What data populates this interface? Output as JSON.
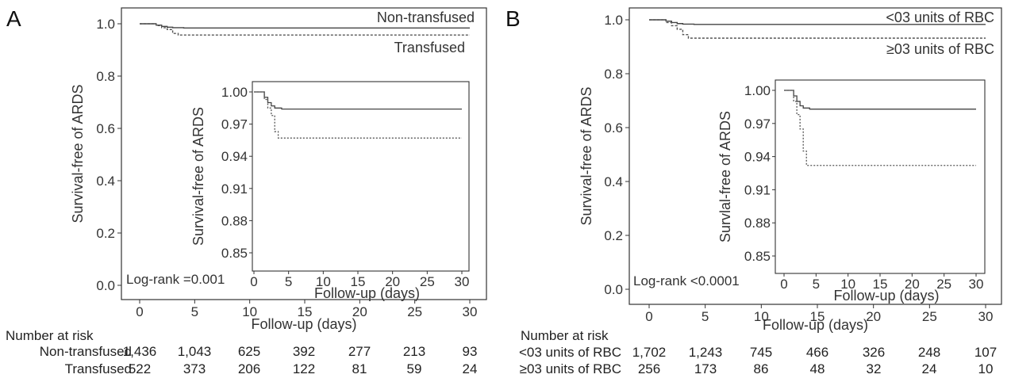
{
  "chart_data": [
    {
      "type": "line",
      "panel": "A",
      "xlabel": "Follow-up (days)",
      "ylabel": "Survival-free of ARDS",
      "xlim": [
        0,
        30
      ],
      "ylim": [
        0,
        1.0
      ],
      "xticks": [
        0,
        5,
        10,
        15,
        20,
        25,
        30
      ],
      "yticks": [
        "0.0",
        "0.2",
        "0.4",
        "0.6",
        "0.8",
        "1.0"
      ],
      "annotation": "Log-rank =0.001",
      "series": [
        {
          "name": "Non-transfused",
          "style": "solid",
          "x": [
            0,
            1,
            1.5,
            2,
            2.5,
            3,
            4,
            30
          ],
          "y": [
            1.0,
            1.0,
            0.995,
            0.99,
            0.987,
            0.985,
            0.984,
            0.984
          ]
        },
        {
          "name": "Transfused",
          "style": "dotted",
          "x": [
            0,
            1,
            1.5,
            2,
            2.5,
            3,
            3.5,
            30
          ],
          "y": [
            1.0,
            1.0,
            0.993,
            0.985,
            0.978,
            0.963,
            0.957,
            0.957
          ]
        }
      ],
      "inset": {
        "xlabel": "Follow-up (days)",
        "ylabel": "Survival-free of ARDS",
        "xlim": [
          0,
          30
        ],
        "ylim": [
          0.84,
          1.0
        ],
        "xticks": [
          0,
          5,
          10,
          15,
          20,
          25,
          30
        ],
        "yticks": [
          "1.00",
          "0.97",
          "0.94",
          "0.91",
          "0.88",
          "0.85"
        ]
      },
      "risk_table": {
        "title": "Number at risk",
        "rows": [
          {
            "label": "Non-transfused",
            "values": [
              "1,436",
              "1,043",
              "625",
              "392",
              "277",
              "213",
              "93"
            ]
          },
          {
            "label": "Transfused",
            "values": [
              "522",
              "373",
              "206",
              "122",
              "81",
              "59",
              "24"
            ]
          }
        ]
      }
    },
    {
      "type": "line",
      "panel": "B",
      "xlabel": "Follow-up (days)",
      "ylabel": "Survival-free of ARDS",
      "xlim": [
        0,
        30
      ],
      "ylim": [
        0,
        1.0
      ],
      "xticks": [
        0,
        5,
        10,
        15,
        20,
        25,
        30
      ],
      "yticks": [
        "0.0",
        "0.2",
        "0.4",
        "0.6",
        "0.8",
        "1.0"
      ],
      "annotation": "Log-rank <0.0001",
      "series": [
        {
          "name": "<03 units of RBC",
          "style": "solid",
          "x": [
            0,
            1,
            1.5,
            2,
            2.5,
            3,
            4,
            30
          ],
          "y": [
            1.0,
            1.0,
            0.995,
            0.99,
            0.986,
            0.984,
            0.983,
            0.983
          ]
        },
        {
          "name": "≥03 units of RBC",
          "style": "dotted",
          "x": [
            0,
            1,
            1.5,
            2,
            2.5,
            3,
            3.5,
            30
          ],
          "y": [
            1.0,
            1.0,
            0.99,
            0.978,
            0.965,
            0.945,
            0.932,
            0.932
          ]
        }
      ],
      "inset": {
        "xlabel": "Follow-up (days)",
        "ylabel": "Survlal-free of ARDS",
        "xlim": [
          0,
          30
        ],
        "ylim": [
          0.84,
          1.0
        ],
        "xticks": [
          0,
          5,
          10,
          15,
          20,
          25,
          30
        ],
        "yticks": [
          "1.00",
          "0.97",
          "0.94",
          "0.91",
          "0.88",
          "0.85"
        ]
      },
      "risk_table": {
        "title": "Number at risk",
        "rows": [
          {
            "label": "<03 units of RBC",
            "values": [
              "1,702",
              "1,243",
              "745",
              "466",
              "326",
              "248",
              "107"
            ]
          },
          {
            "label": "≥03 units of RBC",
            "values": [
              "256",
              "173",
              "86",
              "48",
              "32",
              "24",
              "10"
            ]
          }
        ]
      }
    }
  ]
}
